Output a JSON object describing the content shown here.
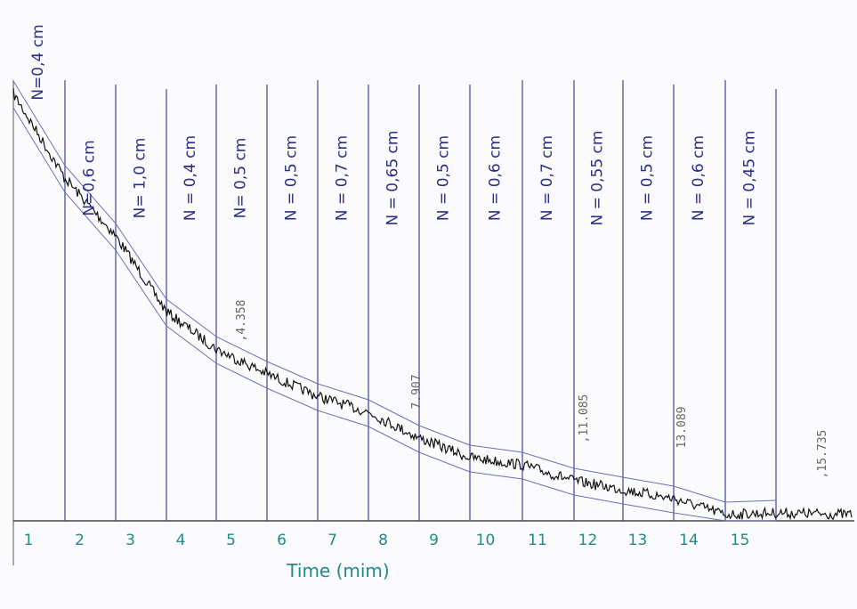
{
  "chart_data": {
    "type": "trace",
    "x_label": "Time (mim)",
    "categories": [
      "1",
      "2",
      "3",
      "4",
      "5",
      "6",
      "7",
      "8",
      "9",
      "10",
      "11",
      "12",
      "13",
      "14",
      "15"
    ],
    "annotations": [
      "N=0,4 cm",
      "N=0,6 cm",
      "N= 1,0 cm",
      "N = 0,4 cm",
      "N= 0,5 cm",
      "N = 0,5 cm",
      "N = 0,7 cm",
      "N = 0,65 cm",
      "N = 0,5 cm",
      "N = 0,6 cm",
      "N = 0,7 cm",
      "N = 0,55 cm",
      "N = 0,5 cm",
      "N = 0,6 cm",
      "N = 0,45 cm"
    ],
    "stamps": [
      ",4.358",
      "7.907",
      ",11.085",
      "13.089",
      ",15.735"
    ]
  }
}
